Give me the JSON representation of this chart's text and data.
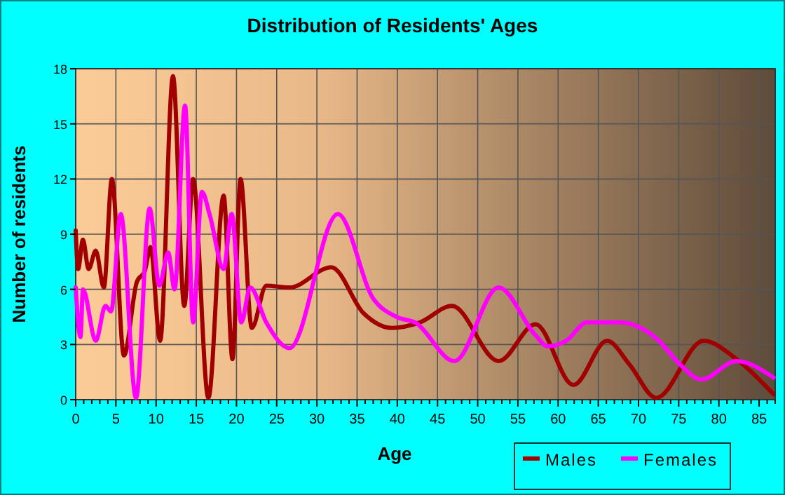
{
  "chart_data": {
    "type": "line",
    "title": "Distribution of Residents' Ages",
    "xlabel": "Age",
    "ylabel": "Number of residents",
    "xlim": [
      0,
      87
    ],
    "xticks": [
      0,
      5,
      10,
      15,
      20,
      25,
      30,
      35,
      40,
      45,
      50,
      55,
      60,
      65,
      70,
      75,
      80,
      85
    ],
    "ylim": [
      0,
      18
    ],
    "yticks": [
      0,
      3,
      6,
      9,
      12,
      15,
      18
    ],
    "grid": true,
    "legend": "bottom right",
    "marker": "none",
    "series": [
      {
        "name": "Males",
        "color": "#a00000",
        "x": [
          0,
          0.3,
          0.9,
          1.6,
          2.5,
          3.5,
          4.5,
          6,
          7.6,
          8.6,
          9.3,
          10.5,
          12.1,
          13.5,
          14.6,
          16.5,
          18.4,
          19.5,
          20.5,
          21.9,
          23.7,
          26.6,
          31.8,
          35.8,
          39.3,
          42.8,
          46.8,
          52.6,
          57.2,
          61.9,
          66.1,
          68.9,
          72.2,
          78.1,
          82.2,
          86.8
        ],
        "values": [
          9.2,
          7.1,
          8.7,
          7.1,
          8.1,
          6.1,
          12,
          2.4,
          6.4,
          7,
          8.3,
          3.2,
          17.6,
          5.1,
          12,
          0.1,
          11.1,
          2.2,
          12,
          3.9,
          6.2,
          6.1,
          7.2,
          4.7,
          3.9,
          4.2,
          5.1,
          2.1,
          4.1,
          0.8,
          3.2,
          1.9,
          0.1,
          3.2,
          2.2,
          0.3
        ]
      },
      {
        "name": "Females",
        "color": "#ff00ff",
        "x": [
          0,
          0.6,
          0.9,
          2.5,
          3.7,
          4.4,
          5.6,
          7.5,
          9.2,
          10.4,
          11.5,
          12.3,
          13.6,
          14.6,
          15.7,
          16.7,
          18.4,
          19.4,
          20.6,
          21.7,
          23.7,
          26.6,
          32.6,
          37,
          39.9,
          42.2,
          47.1,
          52.6,
          57.2,
          58.7,
          61,
          63.6,
          67.6,
          72.3,
          75.2,
          77.8,
          82.2,
          86.8
        ],
        "values": [
          6.1,
          3.4,
          6,
          3.2,
          5.1,
          4.8,
          10.1,
          0.1,
          10.4,
          6.2,
          8,
          6,
          16,
          4.2,
          11.3,
          10,
          7.1,
          10.1,
          4.2,
          6.1,
          4.2,
          2.8,
          10.1,
          5.5,
          4.5,
          4.2,
          2.1,
          6.1,
          3.5,
          2.9,
          3.2,
          4.2,
          4.2,
          3.3,
          1.9,
          1.1,
          2.1,
          1.2
        ]
      }
    ]
  }
}
